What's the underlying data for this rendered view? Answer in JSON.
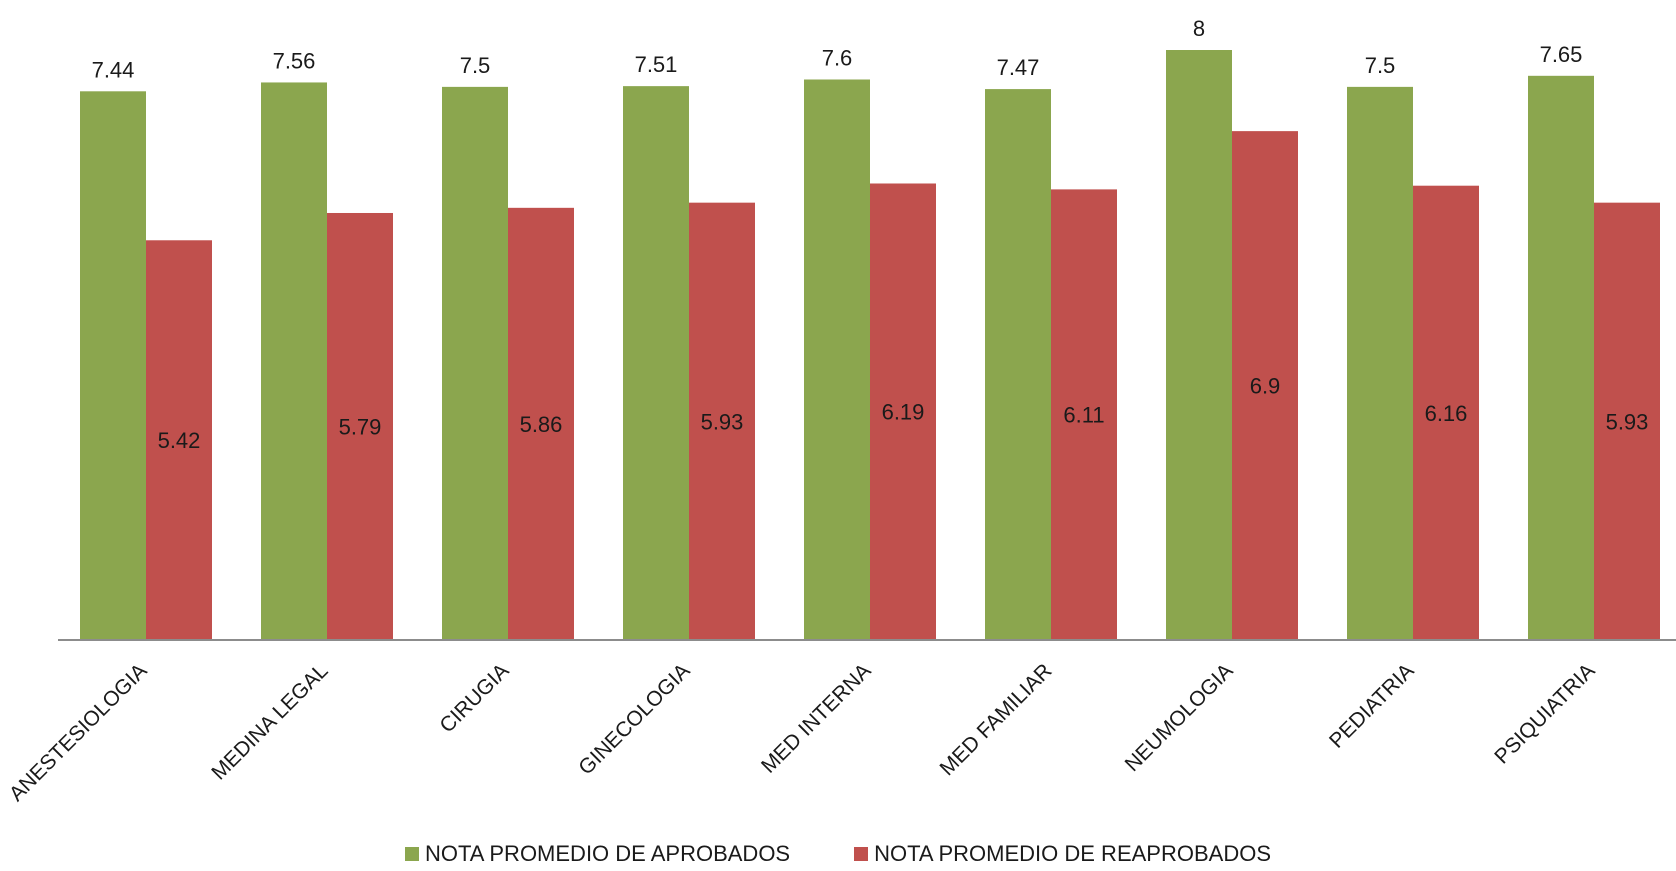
{
  "chart_data": {
    "type": "bar",
    "categories": [
      "ANESTESIOLOGIA",
      "MEDINA LEGAL",
      "CIRUGIA",
      "GINECOLOGIA",
      "MED INTERNA",
      "MED FAMILIAR",
      "NEUMOLOGIA",
      "PEDIATRIA",
      "PSIQUIATRIA"
    ],
    "series": [
      {
        "name": "NOTA PROMEDIO DE APROBADOS",
        "color": "#8BA64E",
        "values": [
          7.44,
          7.56,
          7.5,
          7.51,
          7.6,
          7.47,
          8,
          7.5,
          7.65
        ],
        "labels": [
          "7.44",
          "7.56",
          "7.5",
          "7.51",
          "7.6",
          "7.47",
          "8",
          "7.5",
          "7.65"
        ]
      },
      {
        "name": "NOTA PROMEDIO DE REAPROBADOS",
        "color": "#C0504D",
        "values": [
          5.42,
          5.79,
          5.86,
          5.93,
          6.19,
          6.11,
          6.9,
          6.16,
          5.93
        ],
        "labels": [
          "5.42",
          "5.79",
          "5.86",
          "5.93",
          "6.19",
          "6.11",
          "6.9",
          "6.16",
          "5.93"
        ]
      }
    ],
    "title": "",
    "xlabel": "",
    "ylabel": "",
    "ylim": [
      0,
      8
    ],
    "grid": false,
    "legend": "bottom"
  }
}
